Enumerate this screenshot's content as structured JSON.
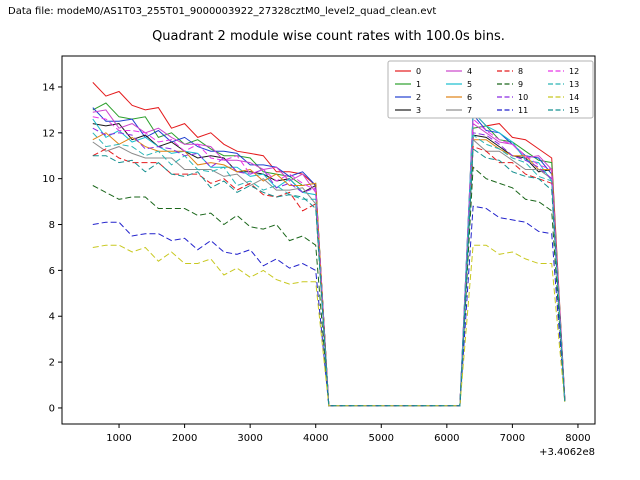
{
  "header": {
    "datafile_label": "Data file: modeM0/AS1T03_255T01_9000003922_27328cztM0_level2_quad_clean.evt"
  },
  "chart_data": {
    "type": "line",
    "title": "Quadrant 2 module wise count rates with 100.0s bins.",
    "xlabel": "",
    "ylabel": "",
    "x_offset_label": "+3.4062e8",
    "xlim": [
      130,
      8260
    ],
    "ylim": [
      -0.7,
      15.35
    ],
    "x_ticks": [
      1000,
      2000,
      3000,
      4000,
      5000,
      6000,
      7000,
      8000
    ],
    "y_ticks": [
      0,
      2,
      4,
      6,
      8,
      10,
      12,
      14
    ],
    "grid": false,
    "legend_position": "upper right",
    "x": [
      600,
      800,
      1000,
      1200,
      1400,
      1600,
      1800,
      2000,
      2200,
      2400,
      2600,
      2800,
      3000,
      3200,
      3400,
      3600,
      3800,
      4000,
      4200,
      4400,
      4600,
      4800,
      5000,
      5200,
      5400,
      5600,
      5800,
      6000,
      6200,
      6400,
      6600,
      6800,
      7000,
      7200,
      7400,
      7600,
      7800
    ],
    "series": [
      {
        "name": "0",
        "color": "#e41a1c",
        "dash": "solid",
        "values": [
          14.2,
          13.6,
          13.8,
          13.2,
          13.0,
          13.1,
          12.2,
          12.4,
          11.8,
          12.0,
          11.5,
          11.2,
          11.1,
          11.0,
          10.3,
          10.3,
          10.2,
          9.7,
          0.1,
          0.1,
          0.1,
          0.1,
          0.1,
          0.1,
          0.1,
          0.1,
          0.1,
          0.1,
          0.1,
          12.9,
          12.3,
          12.4,
          11.8,
          11.7,
          11.3,
          10.9,
          0.4
        ]
      },
      {
        "name": "1",
        "color": "#2ca02c",
        "dash": "solid",
        "values": [
          13.0,
          13.3,
          12.7,
          12.6,
          12.7,
          11.8,
          12.0,
          11.5,
          11.7,
          11.3,
          11.0,
          11.0,
          10.9,
          10.3,
          10.2,
          10.1,
          9.7,
          9.8,
          0.1,
          0.1,
          0.1,
          0.1,
          0.1,
          0.1,
          0.1,
          0.1,
          0.1,
          0.1,
          0.1,
          12.2,
          12.3,
          11.7,
          11.6,
          11.2,
          10.8,
          10.7,
          0.35
        ]
      },
      {
        "name": "2",
        "color": "#2040d0",
        "dash": "solid",
        "values": [
          13.1,
          12.5,
          12.5,
          12.6,
          11.8,
          12.1,
          11.6,
          11.8,
          11.4,
          11.2,
          11.2,
          11.1,
          10.6,
          10.6,
          10.5,
          10.1,
          10.3,
          9.7,
          0.1,
          0.1,
          0.1,
          0.1,
          0.1,
          0.1,
          0.1,
          0.1,
          0.1,
          0.1,
          0.1,
          12.8,
          12.1,
          12.0,
          11.5,
          11.0,
          10.9,
          10.2,
          0.3
        ]
      },
      {
        "name": "3",
        "color": "#1a1a1a",
        "dash": "solid",
        "values": [
          12.4,
          12.3,
          12.4,
          11.7,
          11.9,
          11.4,
          11.6,
          11.2,
          10.9,
          11.0,
          10.9,
          10.3,
          10.3,
          10.2,
          9.9,
          10.0,
          9.4,
          9.7,
          0.1,
          0.1,
          0.1,
          0.1,
          0.1,
          0.1,
          0.1,
          0.1,
          0.1,
          0.1,
          0.1,
          11.9,
          11.8,
          11.4,
          11.0,
          10.9,
          10.3,
          10.4,
          0.35
        ]
      },
      {
        "name": "4",
        "color": "#cc44cc",
        "dash": "solid",
        "values": [
          12.9,
          13.0,
          12.2,
          12.4,
          12.0,
          12.2,
          11.8,
          11.5,
          11.5,
          11.4,
          10.8,
          10.8,
          10.7,
          10.4,
          10.5,
          9.9,
          10.2,
          9.4,
          0.1,
          0.1,
          0.1,
          0.1,
          0.1,
          0.1,
          0.1,
          0.1,
          0.1,
          0.1,
          0.1,
          12.4,
          12.0,
          11.6,
          11.5,
          10.9,
          11.0,
          10.4,
          0.4
        ]
      },
      {
        "name": "5",
        "color": "#17becf",
        "dash": "solid",
        "values": [
          12.6,
          11.8,
          12.1,
          11.6,
          11.8,
          11.4,
          11.1,
          11.2,
          11.1,
          10.5,
          10.5,
          10.5,
          10.1,
          10.2,
          9.6,
          10.0,
          9.4,
          9.3,
          0.1,
          0.1,
          0.1,
          0.1,
          0.1,
          0.1,
          0.1,
          0.1,
          0.1,
          0.1,
          0.1,
          12.9,
          12.3,
          12.0,
          11.6,
          10.8,
          10.7,
          9.9,
          0.3
        ]
      },
      {
        "name": "6",
        "color": "#e08214",
        "dash": "solid",
        "values": [
          11.7,
          12.0,
          11.5,
          11.8,
          11.4,
          11.2,
          11.2,
          11.2,
          10.6,
          10.7,
          10.6,
          10.3,
          10.4,
          9.9,
          10.2,
          9.7,
          9.7,
          9.8,
          0.1,
          0.1,
          0.1,
          0.1,
          0.1,
          0.1,
          0.1,
          0.1,
          0.1,
          0.1,
          0.1,
          11.7,
          11.7,
          11.3,
          11.0,
          11.0,
          10.4,
          10.4,
          0.35
        ]
      },
      {
        "name": "7",
        "color": "#8c8c8c",
        "dash": "solid",
        "values": [
          11.6,
          11.2,
          11.4,
          11.1,
          10.9,
          10.9,
          10.9,
          10.4,
          10.4,
          10.4,
          10.1,
          10.2,
          9.7,
          10.0,
          9.5,
          9.5,
          9.6,
          8.9,
          0.1,
          0.1,
          0.1,
          0.1,
          0.1,
          0.1,
          0.1,
          0.1,
          0.1,
          0.1,
          0.1,
          11.7,
          11.2,
          11.2,
          10.8,
          10.4,
          10.4,
          10.0,
          0.3
        ]
      },
      {
        "name": "8",
        "color": "#e41a1c",
        "dash": "dashed",
        "values": [
          11.0,
          11.3,
          10.9,
          10.7,
          10.7,
          10.7,
          10.2,
          10.2,
          10.2,
          9.8,
          10.0,
          9.5,
          9.8,
          9.3,
          9.2,
          9.4,
          8.6,
          8.9,
          0.1,
          0.1,
          0.1,
          0.1,
          0.1,
          0.1,
          0.1,
          0.1,
          0.1,
          0.1,
          0.1,
          11.4,
          11.2,
          10.7,
          10.7,
          10.2,
          10.0,
          9.8,
          0.3
        ]
      },
      {
        "name": "9",
        "color": "#1a661a",
        "dash": "dashed",
        "values": [
          9.7,
          9.4,
          9.1,
          9.2,
          9.2,
          8.7,
          8.7,
          8.7,
          8.4,
          8.5,
          8.0,
          8.4,
          7.9,
          7.8,
          8.0,
          7.3,
          7.5,
          7.1,
          0.1,
          0.1,
          0.1,
          0.1,
          0.1,
          0.1,
          0.1,
          0.1,
          0.1,
          0.1,
          0.1,
          10.5,
          10.0,
          9.8,
          9.6,
          9.1,
          9.0,
          8.6,
          0.3
        ]
      },
      {
        "name": "10",
        "color": "#8a2be2",
        "dash": "dashed",
        "values": [
          12.2,
          11.9,
          12.0,
          11.9,
          11.3,
          11.4,
          11.3,
          11.0,
          11.1,
          10.5,
          10.9,
          10.3,
          10.2,
          10.4,
          9.6,
          9.8,
          9.4,
          9.6,
          0.1,
          0.1,
          0.1,
          0.1,
          0.1,
          0.1,
          0.1,
          0.1,
          0.1,
          0.1,
          0.1,
          12.0,
          11.9,
          11.5,
          11.0,
          10.8,
          10.5,
          10.0,
          0.35
        ]
      },
      {
        "name": "11",
        "color": "#2222cc",
        "dash": "dashed",
        "values": [
          8.0,
          8.1,
          8.1,
          7.5,
          7.6,
          7.6,
          7.3,
          7.4,
          6.9,
          7.3,
          6.8,
          6.7,
          6.9,
          6.2,
          6.5,
          6.1,
          6.3,
          6.0,
          0.1,
          0.1,
          0.1,
          0.1,
          0.1,
          0.1,
          0.1,
          0.1,
          0.1,
          0.1,
          0.1,
          8.8,
          8.7,
          8.3,
          8.2,
          8.1,
          7.7,
          7.6,
          0.25
        ]
      },
      {
        "name": "12",
        "color": "#e838e8",
        "dash": "dashed",
        "values": [
          12.7,
          12.6,
          12.1,
          12.1,
          12.0,
          11.6,
          11.7,
          11.2,
          11.5,
          10.9,
          10.8,
          11.0,
          10.2,
          10.4,
          9.9,
          10.2,
          9.8,
          9.5,
          0.1,
          0.1,
          0.1,
          0.1,
          0.1,
          0.1,
          0.1,
          0.1,
          0.1,
          0.1,
          0.1,
          12.6,
          12.1,
          11.7,
          11.5,
          11.0,
          10.6,
          10.4,
          0.4
        ]
      },
      {
        "name": "13",
        "color": "#2ab5b5",
        "dash": "dashed",
        "values": [
          12.0,
          11.4,
          11.5,
          11.4,
          11.0,
          11.2,
          10.6,
          11.0,
          10.4,
          10.3,
          10.5,
          9.7,
          9.9,
          9.5,
          9.7,
          9.3,
          9.1,
          9.1,
          0.1,
          0.1,
          0.1,
          0.1,
          0.1,
          0.1,
          0.1,
          0.1,
          0.1,
          0.1,
          0.1,
          11.9,
          11.5,
          11.3,
          10.9,
          10.7,
          10.1,
          9.9,
          0.3
        ]
      },
      {
        "name": "14",
        "color": "#c8c820",
        "dash": "dashed",
        "values": [
          7.0,
          7.1,
          7.1,
          6.8,
          7.0,
          6.4,
          6.8,
          6.3,
          6.3,
          6.5,
          5.8,
          6.1,
          5.7,
          6.0,
          5.6,
          5.4,
          5.5,
          5.5,
          0.1,
          0.1,
          0.1,
          0.1,
          0.1,
          0.1,
          0.1,
          0.1,
          0.1,
          0.1,
          0.1,
          7.1,
          7.1,
          6.7,
          6.8,
          6.5,
          6.3,
          6.3,
          0.25
        ]
      },
      {
        "name": "15",
        "color": "#159090",
        "dash": "dashed",
        "values": [
          11.0,
          11.0,
          10.7,
          10.8,
          10.3,
          10.7,
          10.2,
          10.1,
          10.3,
          9.6,
          9.9,
          9.4,
          9.7,
          9.4,
          9.2,
          9.3,
          9.2,
          8.7,
          0.1,
          0.1,
          0.1,
          0.1,
          0.1,
          0.1,
          0.1,
          0.1,
          0.1,
          0.1,
          0.1,
          11.3,
          10.9,
          10.8,
          10.3,
          10.1,
          10.0,
          9.5,
          0.3
        ]
      }
    ]
  }
}
